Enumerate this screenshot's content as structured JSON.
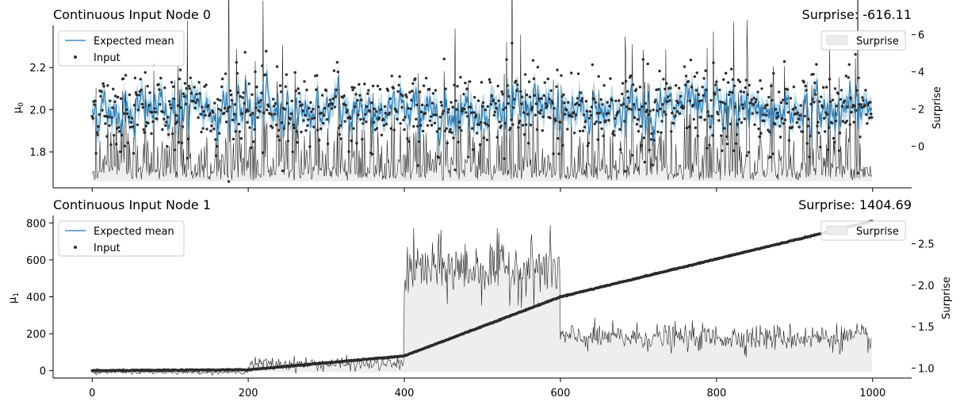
{
  "chart_data": [
    {
      "type": "line",
      "title_left": "Continuous Input Node 0",
      "title_right": "Surprise: -616.11",
      "ylabel": "μ",
      "ylabel_sub": "0",
      "y2label": "Surprise",
      "xlim": [
        -50,
        1050
      ],
      "ylim": [
        1.63,
        2.4
      ],
      "y2lim": [
        -2.24,
        6.5
      ],
      "yticks": [
        "1.8",
        "2.0",
        "2.2"
      ],
      "ytick_values": [
        1.8,
        2.0,
        2.2
      ],
      "y2ticks": [
        "0",
        "2",
        "4",
        "6"
      ],
      "y2tick_values": [
        0,
        2,
        4,
        6
      ],
      "legend": [
        "Expected mean",
        "Input"
      ],
      "legend2": [
        "Surprise"
      ],
      "colors": {
        "mean": "#1f77b4",
        "band": "#9ecae1",
        "input": "#2b2b2b",
        "surprise_line": "#222222",
        "surprise_fill": "#ececec"
      },
      "series": [
        {
          "name": "Expected mean",
          "summary": "mean ~2.0, fluctuates between ~1.78 and ~2.22, with uncertainty band ±0.05"
        },
        {
          "name": "Input",
          "summary": "1000 noisy points, mean 2.0, sd ~0.1, range ~1.7 to ~2.35"
        },
        {
          "name": "Surprise",
          "summary": "baseline ~-1.8, peaks mostly 0-3, spikes up to ~6 near x=550, 735, 945"
        }
      ],
      "n_points": 1000
    },
    {
      "type": "line",
      "title_left": "Continuous Input Node 1",
      "title_right": "Surprise: 1404.69",
      "ylabel": "μ",
      "ylabel_sub": "1",
      "y2label": "Surprise",
      "xlabel": "",
      "xlim": [
        -50,
        1050
      ],
      "ylim": [
        -40,
        840
      ],
      "y2lim": [
        0.88,
        2.84
      ],
      "xticks": [
        "0",
        "200",
        "400",
        "600",
        "800",
        "1000"
      ],
      "xtick_values": [
        0,
        200,
        400,
        600,
        800,
        1000
      ],
      "yticks": [
        "0",
        "200",
        "400",
        "600",
        "800"
      ],
      "ytick_values": [
        0,
        200,
        400,
        600,
        800
      ],
      "y2ticks": [
        "1.0",
        "1.5",
        "2.0",
        "2.5"
      ],
      "y2tick_values": [
        1.0,
        1.5,
        2.0,
        2.5
      ],
      "legend": [
        "Expected mean",
        "Input"
      ],
      "legend2": [
        "Surprise"
      ],
      "segments": [
        {
          "x_start": 0,
          "x_end": 200,
          "mean_start": 0,
          "mean_end": 5,
          "surprise_level": 0.95
        },
        {
          "x_start": 200,
          "x_end": 400,
          "mean_start": 5,
          "mean_end": 80,
          "surprise_level": 1.05
        },
        {
          "x_start": 400,
          "x_end": 600,
          "mean_start": 80,
          "mean_end": 400,
          "surprise_level": 2.2
        },
        {
          "x_start": 600,
          "x_end": 1000,
          "mean_start": 400,
          "mean_end": 810,
          "surprise_level": 1.37
        }
      ],
      "n_points": 1000
    }
  ]
}
